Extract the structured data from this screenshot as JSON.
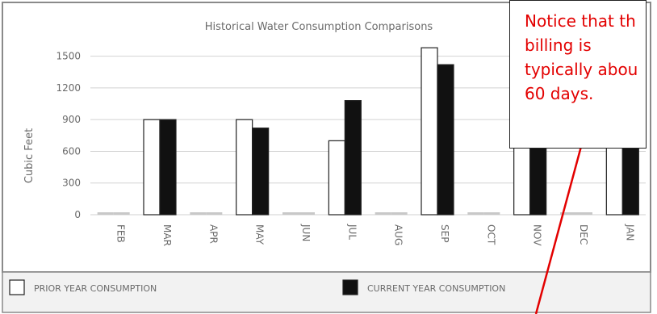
{
  "chart_data": {
    "type": "bar",
    "title": "Historical Water Consumption Comparisons",
    "xlabel": "",
    "ylabel": "Cubic Feet",
    "ylim": [
      0,
      1650
    ],
    "yticks": [
      0,
      300,
      600,
      900,
      1200,
      1500
    ],
    "grid": true,
    "legend_position": "bottom",
    "categories": [
      "FEB",
      "MAR",
      "APR",
      "MAY",
      "JUN",
      "JUL",
      "AUG",
      "SEP",
      "OCT",
      "NOV",
      "DEC",
      "JAN"
    ],
    "series": [
      {
        "name": "PRIOR YEAR CONSUMPTION",
        "color": "#ffffff",
        "values": [
          0,
          900,
          0,
          900,
          0,
          700,
          0,
          1580,
          0,
          1000,
          0,
          900
        ]
      },
      {
        "name": "CURRENT YEAR CONSUMPTION",
        "color": "#111111",
        "values": [
          0,
          900,
          0,
          820,
          0,
          1080,
          0,
          1420,
          0,
          800,
          0,
          900
        ]
      }
    ]
  },
  "callout": {
    "lines": [
      "Notice that th",
      "billing is",
      "typically abou",
      "60 days."
    ],
    "color": "#e30000",
    "arrow_color": "#e30000"
  }
}
